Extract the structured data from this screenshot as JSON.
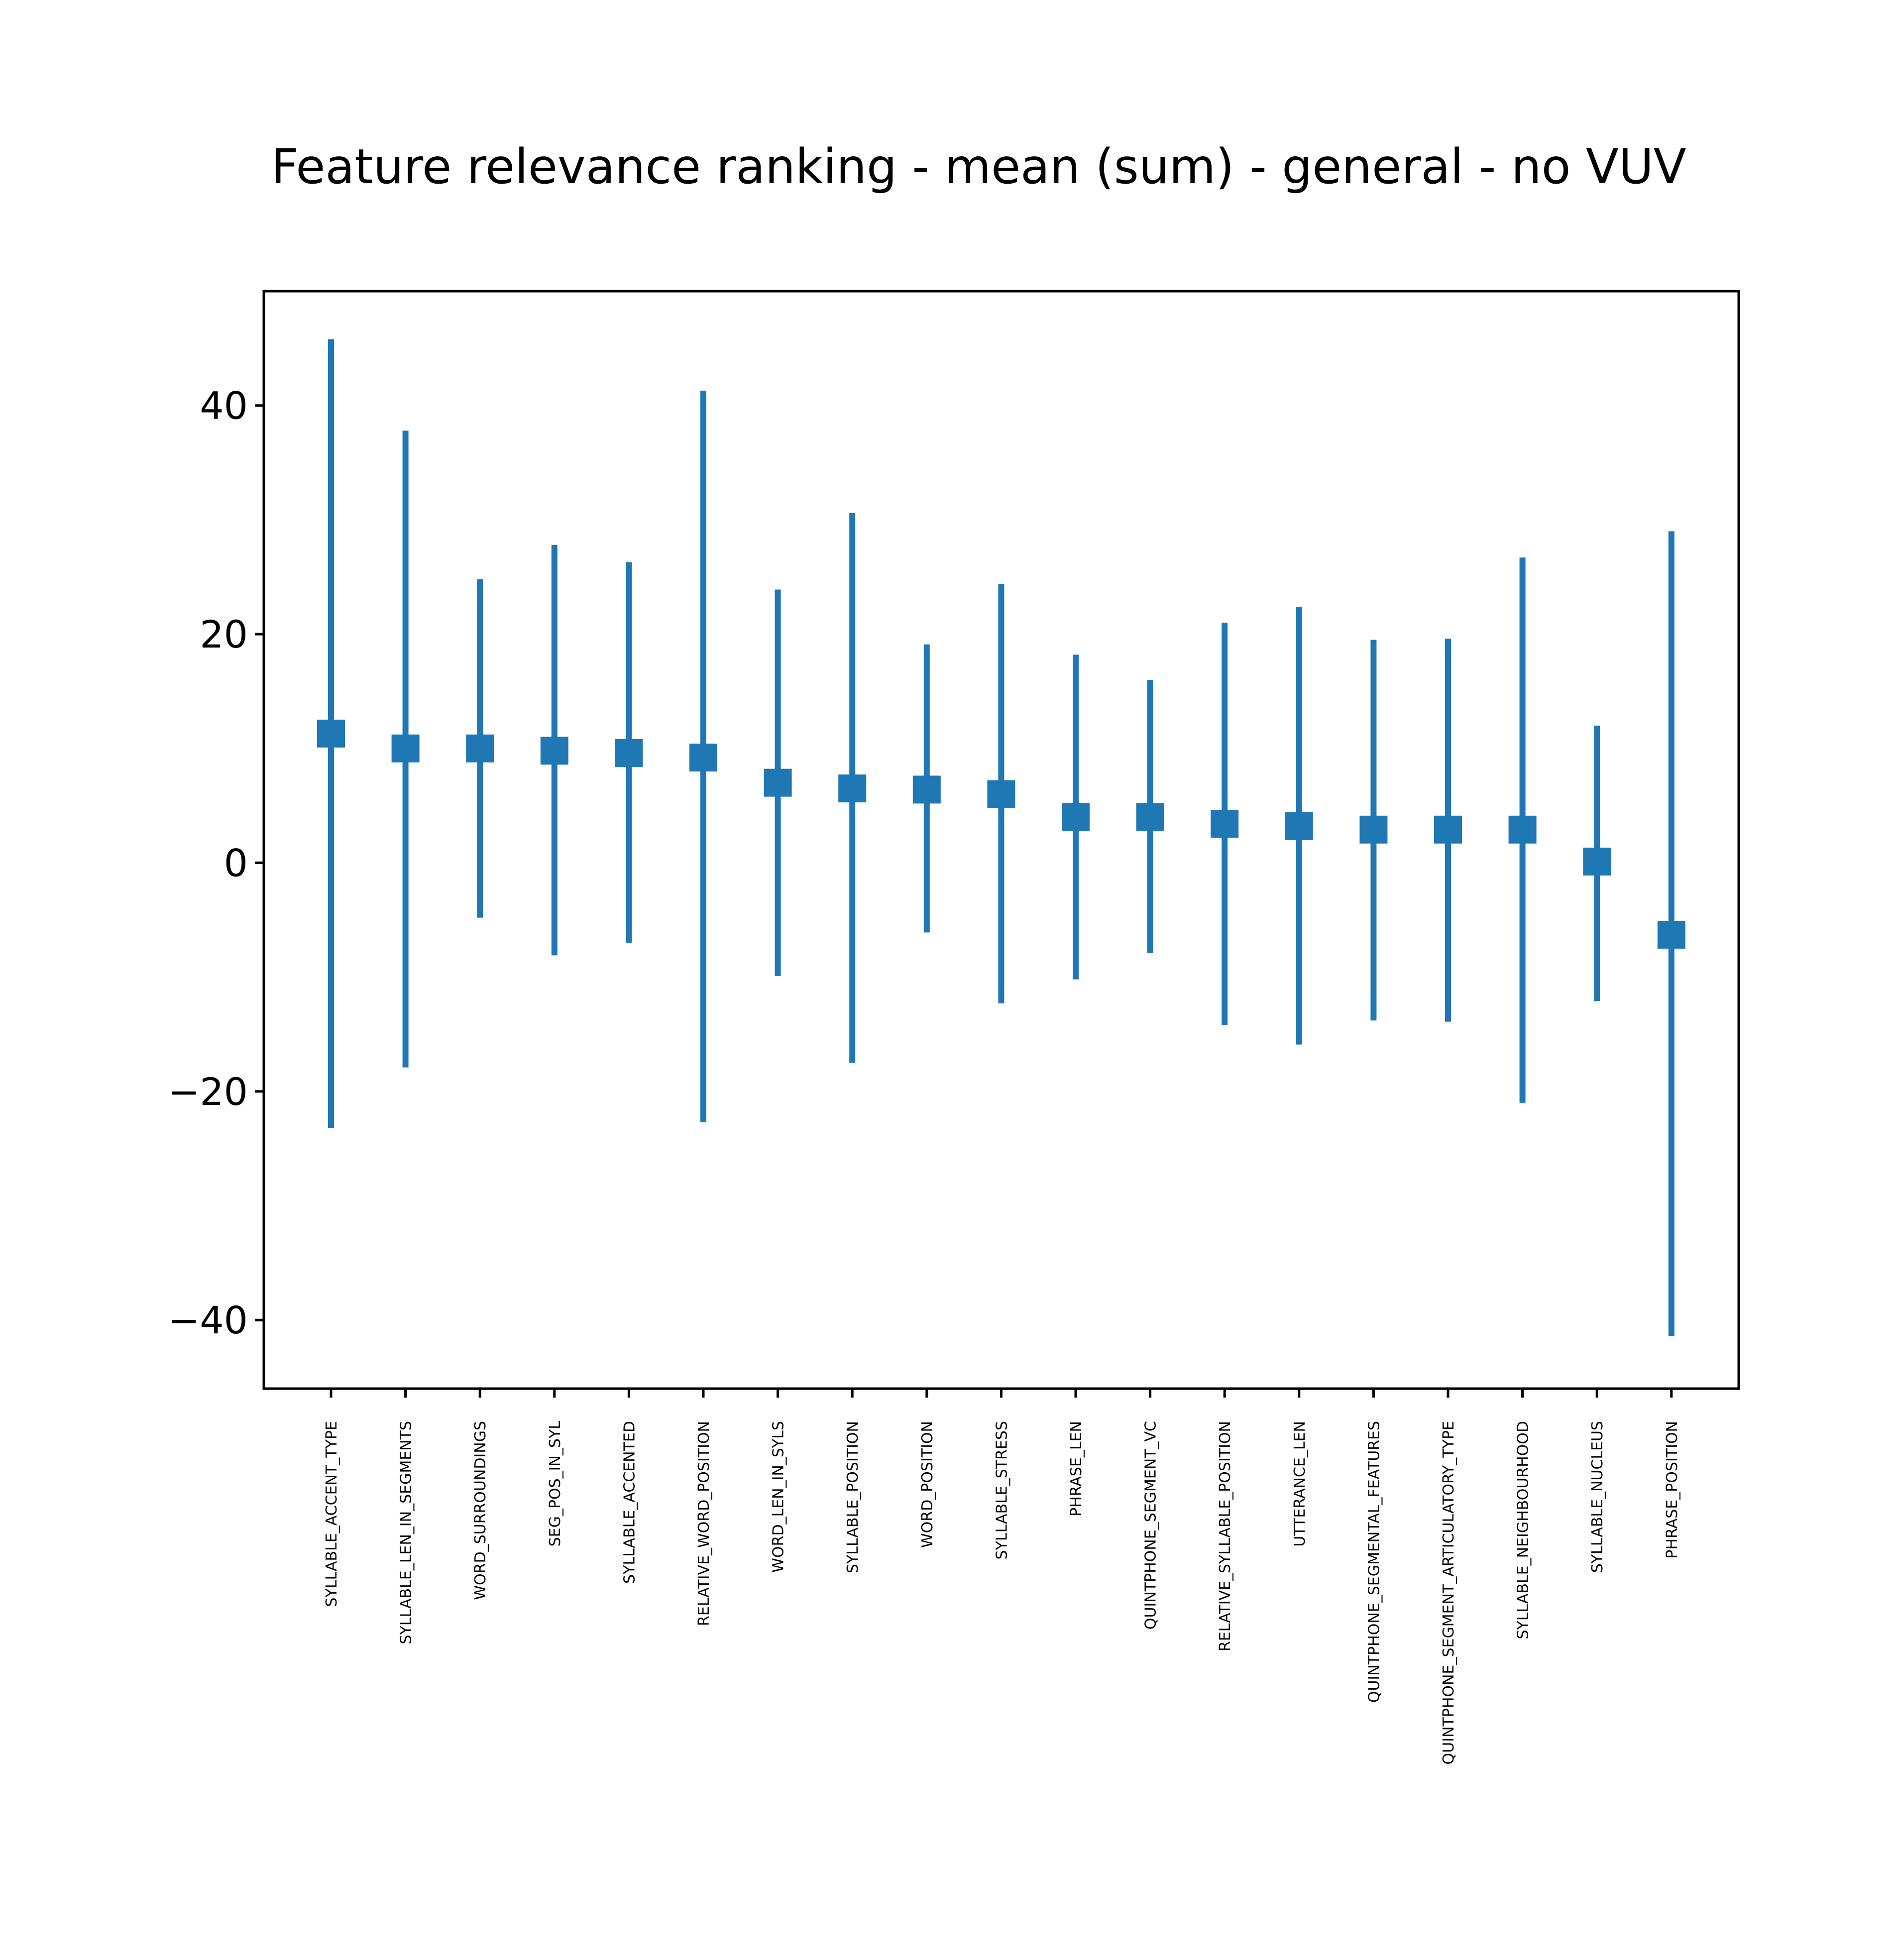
{
  "chart_data": {
    "type": "errorbar",
    "title": "Feature relevance ranking - mean (sum) - general - no VUV",
    "xlabel": "",
    "ylabel": "",
    "ylim": [
      -46,
      50
    ],
    "yticks": [
      -40,
      -20,
      0,
      20,
      40
    ],
    "ytick_labels": [
      "−40",
      "−20",
      "0",
      "20",
      "40"
    ],
    "grid": false,
    "color": "#1f77b4",
    "categories": [
      "SYLLABLE_ACCENT_TYPE",
      "SYLLABLE_LEN_IN_SEGMENTS",
      "WORD_SURROUNDINGS",
      "SEG_POS_IN_SYL",
      "SYLLABLE_ACCENTED",
      "RELATIVE_WORD_POSITION",
      "WORD_LEN_IN_SYLS",
      "SYLLABLE_POSITION",
      "WORD_POSITION",
      "SYLLABLE_STRESS",
      "PHRASE_LEN",
      "QUINTPHONE_SEGMENT_VC",
      "RELATIVE_SYLLABLE_POSITION",
      "UTTERANCE_LEN",
      "QUINTPHONE_SEGMENTAL_FEATURES",
      "QUINTPHONE_SEGMENT_ARTICULATORY_TYPE",
      "SYLLABLE_NEIGHBOURHOOD",
      "SYLLABLE_NUCLEUS",
      "PHRASE_POSITION"
    ],
    "means": [
      11.3,
      10.0,
      10.0,
      9.8,
      9.6,
      9.2,
      7.0,
      6.5,
      6.4,
      6.0,
      4.0,
      4.0,
      3.4,
      3.2,
      2.9,
      2.9,
      2.9,
      0.1,
      -6.3
    ],
    "upper": [
      45.8,
      37.8,
      24.8,
      27.8,
      26.3,
      41.3,
      23.9,
      30.6,
      19.1,
      24.4,
      18.2,
      16.0,
      21.0,
      22.4,
      19.5,
      19.6,
      26.7,
      12.0,
      29.0
    ],
    "lower": [
      -23.2,
      -17.9,
      -4.8,
      -8.1,
      -7.0,
      -22.7,
      -9.9,
      -17.5,
      -6.1,
      -12.3,
      -10.2,
      -7.9,
      -14.2,
      -15.9,
      -13.8,
      -13.9,
      -21.0,
      -12.1,
      -41.4
    ]
  }
}
